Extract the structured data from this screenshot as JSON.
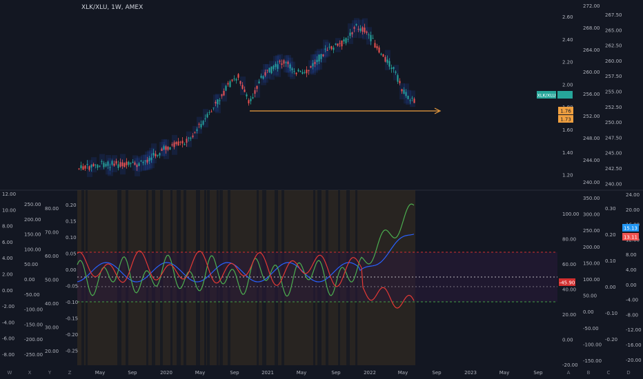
{
  "symbol_title": "XLK/XLU, 1W, AMEX",
  "price_labels": {
    "current": "1.76",
    "level_upper": "1.76",
    "level_lower": "1.73",
    "osc_value": "-45.90",
    "right_top_value": "15.13",
    "right_low_value": "13.11",
    "ticker_tag": "XLK/XLU"
  },
  "main_axis_left": [
    "2.60",
    "2.40",
    "2.20",
    "2.00",
    "1.80",
    "1.60",
    "1.40",
    "1.20"
  ],
  "main_axis_right": [
    "272.00",
    "268.00",
    "264.00",
    "260.00",
    "256.00",
    "252.00",
    "248.00",
    "244.00",
    "240.00"
  ],
  "main_axis_far": [
    "267.50",
    "265.00",
    "262.50",
    "260.00",
    "257.50",
    "255.00",
    "252.50",
    "250.00",
    "247.50",
    "245.00",
    "242.50",
    "240.00"
  ],
  "osc_axes": {
    "a": [
      "12.00",
      "10.00",
      "8.00",
      "6.00",
      "4.00",
      "2.00",
      "0.00",
      "-2.00",
      "-4.00",
      "-6.00",
      "-8.00"
    ],
    "b": [
      "250.00",
      "200.00",
      "150.00",
      "100.00",
      "50.00",
      "0.00",
      "-50.00",
      "-100.00",
      "-150.00",
      "-200.00",
      "-250.00"
    ],
    "c": [
      "80.00",
      "70.00",
      "60.00",
      "50.00",
      "40.00",
      "30.00",
      "20.00"
    ],
    "d": [
      "0.20",
      "0.15",
      "0.10",
      "0.05",
      "0.00",
      "-0.05",
      "-0.10",
      "-0.15",
      "-0.20",
      "-0.25"
    ],
    "e": [
      "100.00",
      "80.00",
      "60.00",
      "40.00",
      "20.00",
      "0.00",
      "-20.00"
    ],
    "f": [
      "350.00",
      "300.00",
      "250.00",
      "200.00",
      "150.00",
      "100.00",
      "50.00",
      "0.00",
      "-50.00",
      "-100.00",
      "-150.00"
    ],
    "g": [
      "0.30",
      "0.20",
      "0.10",
      "0.00",
      "-0.10",
      "-0.20"
    ],
    "h": [
      "24.00",
      "20.00",
      "16.00",
      "12.00",
      "8.00",
      "4.00",
      "0.00",
      "-4.00",
      "-8.00",
      "-12.00",
      "-16.00",
      "-20.00"
    ]
  },
  "time_axis": [
    "May",
    "Sep",
    "2020",
    "May",
    "Sep",
    "2021",
    "May",
    "Sep",
    "2022",
    "May",
    "Sep",
    "2023",
    "May",
    "Sep"
  ],
  "bottom_letters_left": [
    "W",
    "X",
    "Y",
    "Z"
  ],
  "bottom_letters_right": [
    "A",
    "B",
    "C",
    "D"
  ],
  "colors": {
    "background": "#131722",
    "up": "#26a69a",
    "down": "#ef5350",
    "orange": "#f0a040",
    "green_line": "#4caf50",
    "red_line": "#e53935",
    "blue_line": "#2962ff",
    "shade_brown": "#3a3020"
  }
}
